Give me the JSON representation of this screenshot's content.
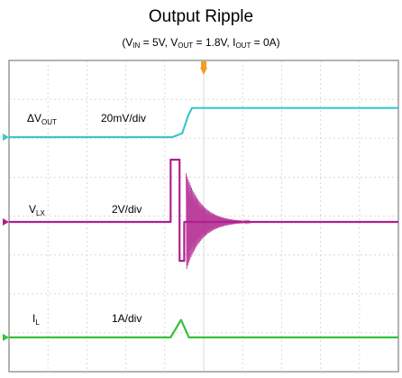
{
  "title": "Output Ripple",
  "subtitle": {
    "vin_label": "V",
    "vin_sub": "IN",
    "vin_value": " = 5V, ",
    "vout_label": "V",
    "vout_sub": "OUT",
    "vout_value": " = 1.8V, ",
    "iout_label": "I",
    "iout_sub": "OUT",
    "iout_value": " = 0A)",
    "open": "("
  },
  "colors": {
    "vout": "#3ec6c8",
    "vlx": "#b0208c",
    "il": "#35c23a",
    "trigger": "#f0a020",
    "grid": "#d8d8d8",
    "frame": "#9a9a9a"
  },
  "chart_data": {
    "type": "line",
    "title": "Output Ripple",
    "grid": true,
    "divisions": {
      "x": 10,
      "y": 8
    },
    "channels": [
      {
        "name_prefix": "ΔV",
        "name_sub": "OUT",
        "scale": "20mV/div",
        "series": "vout",
        "x": [
          0,
          4.2,
          4.45,
          4.6,
          4.7,
          10
        ],
        "y": [
          0,
          0,
          0.1,
          0.55,
          0.75,
          0.75
        ]
      },
      {
        "name_prefix": "V",
        "name_sub": "LX",
        "scale": "2V/div",
        "series": "vlx",
        "x": [
          0,
          4.15,
          4.15,
          4.38,
          4.38,
          4.5,
          4.5,
          10
        ],
        "y": [
          0,
          0,
          1.6,
          1.6,
          -1.0,
          -1.0,
          0,
          0
        ],
        "ring": {
          "start": 4.55,
          "decay_end": 6.2,
          "initial_amplitude": 1.25
        }
      },
      {
        "name_prefix": "I",
        "name_sub": "L",
        "scale": "1A/div",
        "series": "il",
        "x": [
          0,
          4.15,
          4.42,
          4.62,
          10
        ],
        "y": [
          0,
          0,
          0.45,
          0,
          0
        ]
      }
    ]
  }
}
